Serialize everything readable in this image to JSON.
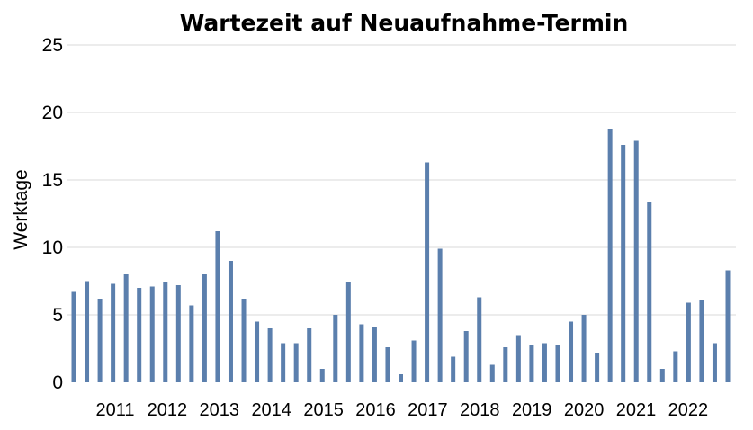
{
  "chart_data": {
    "type": "bar",
    "title": "Wartezeit auf Neuaufnahme-Termin",
    "xlabel": "",
    "ylabel": "Werktage",
    "ylim": [
      0,
      25
    ],
    "yticks": [
      "0",
      "5",
      "10",
      "15",
      "20",
      "25"
    ],
    "grid": true,
    "legend": "none",
    "bar_color": "#5b7fad",
    "year_labels": [
      "2011",
      "2012",
      "2013",
      "2014",
      "2015",
      "2016",
      "2017",
      "2018",
      "2019",
      "2020",
      "2021",
      "2022"
    ],
    "values": [
      6.7,
      7.5,
      6.2,
      7.3,
      8.0,
      7.0,
      7.1,
      7.4,
      7.2,
      5.7,
      8.0,
      11.2,
      9.0,
      6.2,
      4.5,
      4.0,
      2.9,
      2.9,
      4.0,
      1.0,
      5.0,
      7.4,
      4.3,
      4.1,
      2.6,
      0.6,
      3.1,
      16.3,
      9.9,
      1.9,
      3.8,
      6.3,
      1.3,
      2.6,
      3.5,
      2.8,
      2.9,
      2.8,
      4.5,
      5.0,
      2.2,
      18.8,
      17.6,
      17.9,
      13.4,
      1.0,
      2.3,
      5.9,
      6.1,
      2.9,
      8.3
    ]
  }
}
